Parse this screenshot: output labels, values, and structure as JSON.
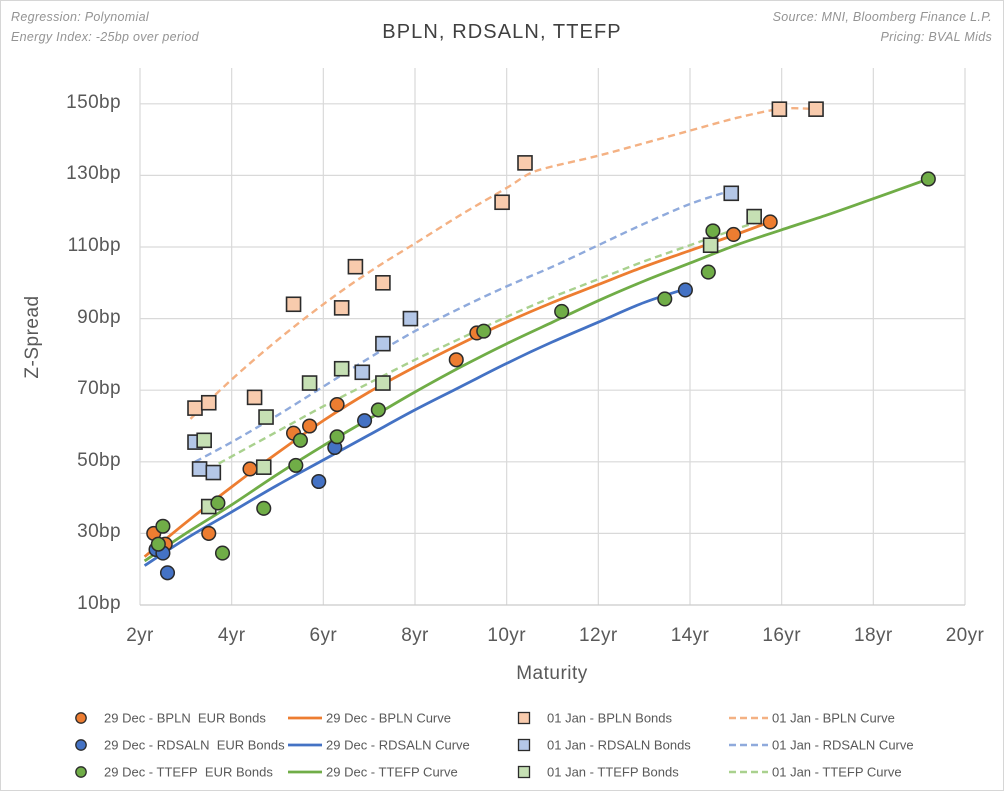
{
  "header": {
    "regression": "Regression: Polynomial",
    "energy_index": "Energy Index: -25bp over period",
    "source": "Source: MNI, Bloomberg Finance L.P.",
    "pricing": "Pricing: BVAL Mids"
  },
  "chart_data": {
    "type": "scatter",
    "title": "BPLN, RDSALN, TTEFP",
    "xlabel": "Maturity",
    "ylabel": "Z-Spread",
    "xlim": [
      2,
      20
    ],
    "ylim": [
      10,
      160
    ],
    "grid": true,
    "x_ticks": [
      {
        "v": 2,
        "label": "2yr"
      },
      {
        "v": 4,
        "label": "4yr"
      },
      {
        "v": 6,
        "label": "6yr"
      },
      {
        "v": 8,
        "label": "8yr"
      },
      {
        "v": 10,
        "label": "10yr"
      },
      {
        "v": 12,
        "label": "12yr"
      },
      {
        "v": 14,
        "label": "14yr"
      },
      {
        "v": 16,
        "label": "16yr"
      },
      {
        "v": 18,
        "label": "18yr"
      },
      {
        "v": 20,
        "label": "20yr"
      }
    ],
    "y_ticks": [
      {
        "v": 10,
        "label": "10bp"
      },
      {
        "v": 30,
        "label": "30bp"
      },
      {
        "v": 50,
        "label": "50bp"
      },
      {
        "v": 70,
        "label": "70bp"
      },
      {
        "v": 90,
        "label": "90bp"
      },
      {
        "v": 110,
        "label": "110bp"
      },
      {
        "v": 130,
        "label": "130bp"
      },
      {
        "v": 150,
        "label": "150bp"
      }
    ],
    "series": [
      {
        "name": "01 Jan - BPLN Curve",
        "kind": "line",
        "dash": true,
        "color": "#F4B183",
        "points": [
          [
            3.1,
            62
          ],
          [
            4,
            73
          ],
          [
            5,
            84
          ],
          [
            6,
            94
          ],
          [
            7,
            103
          ],
          [
            8,
            111
          ],
          [
            9,
            119
          ],
          [
            10,
            126.5
          ],
          [
            10.5,
            130.5
          ],
          [
            11,
            132.5
          ],
          [
            12,
            135.5
          ],
          [
            13,
            139
          ],
          [
            14,
            142.5
          ],
          [
            15,
            146
          ],
          [
            16,
            148.6
          ],
          [
            16.75,
            148.5
          ]
        ]
      },
      {
        "name": "01 Jan - RDSALN Curve",
        "kind": "line",
        "dash": true,
        "color": "#8FAADC",
        "points": [
          [
            3.2,
            50
          ],
          [
            4,
            55.5
          ],
          [
            5,
            63
          ],
          [
            6,
            71
          ],
          [
            7,
            79
          ],
          [
            8,
            86.5
          ],
          [
            9,
            93
          ],
          [
            10,
            99
          ],
          [
            11,
            104.5
          ],
          [
            12,
            110.5
          ],
          [
            13,
            116.5
          ],
          [
            14,
            122
          ],
          [
            14.9,
            125.8
          ]
        ]
      },
      {
        "name": "01 Jan - TTEFP Curve",
        "kind": "line",
        "dash": true,
        "color": "#A9D18E",
        "points": [
          [
            3.5,
            48
          ],
          [
            4,
            51.5
          ],
          [
            5,
            58.5
          ],
          [
            6,
            65.5
          ],
          [
            7,
            72
          ],
          [
            8,
            78.5
          ],
          [
            9,
            84.5
          ],
          [
            10,
            90.5
          ],
          [
            11,
            96
          ],
          [
            12,
            101
          ],
          [
            13,
            106
          ],
          [
            14,
            110.5
          ],
          [
            15,
            115
          ],
          [
            15.6,
            117.5
          ]
        ]
      },
      {
        "name": "29 Dec - BPLN Curve",
        "kind": "line",
        "dash": false,
        "color": "#ED7D31",
        "points": [
          [
            2.1,
            23.5
          ],
          [
            3,
            33
          ],
          [
            4,
            43
          ],
          [
            5,
            52.5
          ],
          [
            6,
            61.5
          ],
          [
            7,
            69.5
          ],
          [
            8,
            76.5
          ],
          [
            9,
            83
          ],
          [
            10,
            89
          ],
          [
            11,
            94.5
          ],
          [
            12,
            99.5
          ],
          [
            13,
            104.5
          ],
          [
            14,
            109
          ],
          [
            15,
            113.5
          ],
          [
            15.75,
            117
          ]
        ]
      },
      {
        "name": "29 Dec - RDSALN Curve",
        "kind": "line",
        "dash": false,
        "color": "#4472C4",
        "points": [
          [
            2.1,
            21
          ],
          [
            3,
            28.5
          ],
          [
            4,
            36
          ],
          [
            5,
            43.5
          ],
          [
            6,
            50.5
          ],
          [
            7,
            57.5
          ],
          [
            8,
            64.5
          ],
          [
            9,
            71
          ],
          [
            10,
            77.5
          ],
          [
            11,
            83.5
          ],
          [
            12,
            89
          ],
          [
            13,
            94.5
          ],
          [
            13.9,
            98.3
          ]
        ]
      },
      {
        "name": "29 Dec - TTEFP Curve",
        "kind": "line",
        "dash": false,
        "color": "#70AD47",
        "points": [
          [
            2.1,
            22.3
          ],
          [
            3,
            30
          ],
          [
            4,
            38
          ],
          [
            5,
            46.5
          ],
          [
            6,
            54.5
          ],
          [
            7,
            62
          ],
          [
            8,
            69.5
          ],
          [
            9,
            76.5
          ],
          [
            10,
            83
          ],
          [
            11,
            89
          ],
          [
            12,
            95
          ],
          [
            13,
            100.5
          ],
          [
            14,
            105.5
          ],
          [
            15,
            110.5
          ],
          [
            16,
            114.8
          ],
          [
            17,
            119
          ],
          [
            18,
            123.5
          ],
          [
            19.2,
            129
          ]
        ]
      },
      {
        "name": "01 Jan - BPLN Bonds",
        "kind": "scatter",
        "marker": "square",
        "color": "#F8CBAD",
        "points": [
          [
            3.2,
            65
          ],
          [
            3.5,
            66.5
          ],
          [
            4.5,
            68
          ],
          [
            5.35,
            94
          ],
          [
            6.4,
            93
          ],
          [
            6.7,
            104.5
          ],
          [
            7.3,
            100
          ],
          [
            9.9,
            122.5
          ],
          [
            10.4,
            133.5
          ],
          [
            15.95,
            148.5
          ],
          [
            16.75,
            148.5
          ]
        ]
      },
      {
        "name": "01 Jan - RDSALN Bonds",
        "kind": "scatter",
        "marker": "square",
        "color": "#B4C7E7",
        "points": [
          [
            3.2,
            55.5
          ],
          [
            3.3,
            48
          ],
          [
            3.6,
            47
          ],
          [
            6.85,
            75
          ],
          [
            7.3,
            83
          ],
          [
            7.9,
            90
          ],
          [
            14.9,
            125
          ]
        ]
      },
      {
        "name": "01 Jan - TTEFP Bonds",
        "kind": "scatter",
        "marker": "square",
        "color": "#C6E0B4",
        "points": [
          [
            3.4,
            56
          ],
          [
            3.5,
            37.5
          ],
          [
            4.7,
            48.5
          ],
          [
            4.75,
            62.5
          ],
          [
            5.7,
            72
          ],
          [
            6.4,
            76
          ],
          [
            7.3,
            72
          ],
          [
            14.45,
            110.5
          ],
          [
            15.4,
            118.5
          ]
        ]
      },
      {
        "name": "29 Dec - BPLN EUR Bonds",
        "kind": "scatter",
        "marker": "circle",
        "color": "#ED7D31",
        "points": [
          [
            2.3,
            30
          ],
          [
            2.55,
            27
          ],
          [
            3.5,
            30
          ],
          [
            4.4,
            48
          ],
          [
            5.35,
            58
          ],
          [
            5.7,
            60
          ],
          [
            6.3,
            66
          ],
          [
            8.9,
            78.5
          ],
          [
            9.35,
            86
          ],
          [
            14.95,
            113.5
          ],
          [
            15.75,
            117
          ]
        ]
      },
      {
        "name": "29 Dec - RDSALN EUR Bonds",
        "kind": "scatter",
        "marker": "circle",
        "color": "#4472C4",
        "points": [
          [
            2.35,
            25.5
          ],
          [
            2.5,
            24.5
          ],
          [
            2.6,
            19
          ],
          [
            5.9,
            44.5
          ],
          [
            6.25,
            54
          ],
          [
            6.9,
            61.5
          ],
          [
            13.9,
            98
          ]
        ]
      },
      {
        "name": "29 Dec - TTEFP EUR Bonds",
        "kind": "scatter",
        "marker": "circle",
        "color": "#70AD47",
        "points": [
          [
            2.4,
            27
          ],
          [
            2.5,
            32
          ],
          [
            3.7,
            38.5
          ],
          [
            3.8,
            24.5
          ],
          [
            4.7,
            37
          ],
          [
            5.4,
            49
          ],
          [
            5.5,
            56
          ],
          [
            6.3,
            57
          ],
          [
            7.2,
            64.5
          ],
          [
            9.5,
            86.5
          ],
          [
            11.2,
            92
          ],
          [
            13.45,
            95.5
          ],
          [
            14.4,
            103
          ],
          [
            14.5,
            114.5
          ],
          [
            19.2,
            129
          ]
        ]
      }
    ],
    "legend_position": "bottom"
  },
  "legend": {
    "columns": [
      {
        "type": "circle",
        "items": [
          {
            "label": "29 Dec - BPLN  EUR Bonds",
            "color": "#ED7D31"
          },
          {
            "label": "29 Dec - RDSALN  EUR Bonds",
            "color": "#4472C4"
          },
          {
            "label": "29 Dec - TTEFP  EUR Bonds",
            "color": "#70AD47"
          }
        ]
      },
      {
        "type": "line",
        "items": [
          {
            "label": "29 Dec - BPLN Curve",
            "color": "#ED7D31"
          },
          {
            "label": "29 Dec - RDSALN Curve",
            "color": "#4472C4"
          },
          {
            "label": "29 Dec - TTEFP Curve",
            "color": "#70AD47"
          }
        ]
      },
      {
        "type": "square",
        "items": [
          {
            "label": "01 Jan - BPLN Bonds",
            "color": "#F8CBAD"
          },
          {
            "label": "01 Jan - RDSALN Bonds",
            "color": "#B4C7E7"
          },
          {
            "label": "01 Jan - TTEFP Bonds",
            "color": "#C6E0B4"
          }
        ]
      },
      {
        "type": "dash",
        "items": [
          {
            "label": "01 Jan - BPLN Curve",
            "color": "#F4B183"
          },
          {
            "label": "01 Jan - RDSALN Curve",
            "color": "#8FAADC"
          },
          {
            "label": "01 Jan - TTEFP Curve",
            "color": "#A9D18E"
          }
        ]
      }
    ]
  },
  "colors": {
    "grid": "#D9D9D9",
    "axis_line": "#CBCBCB",
    "marker_border": "#2B2B2B",
    "tick_text": "#595959",
    "title_text": "#404040",
    "annotation_text": "#949494"
  }
}
